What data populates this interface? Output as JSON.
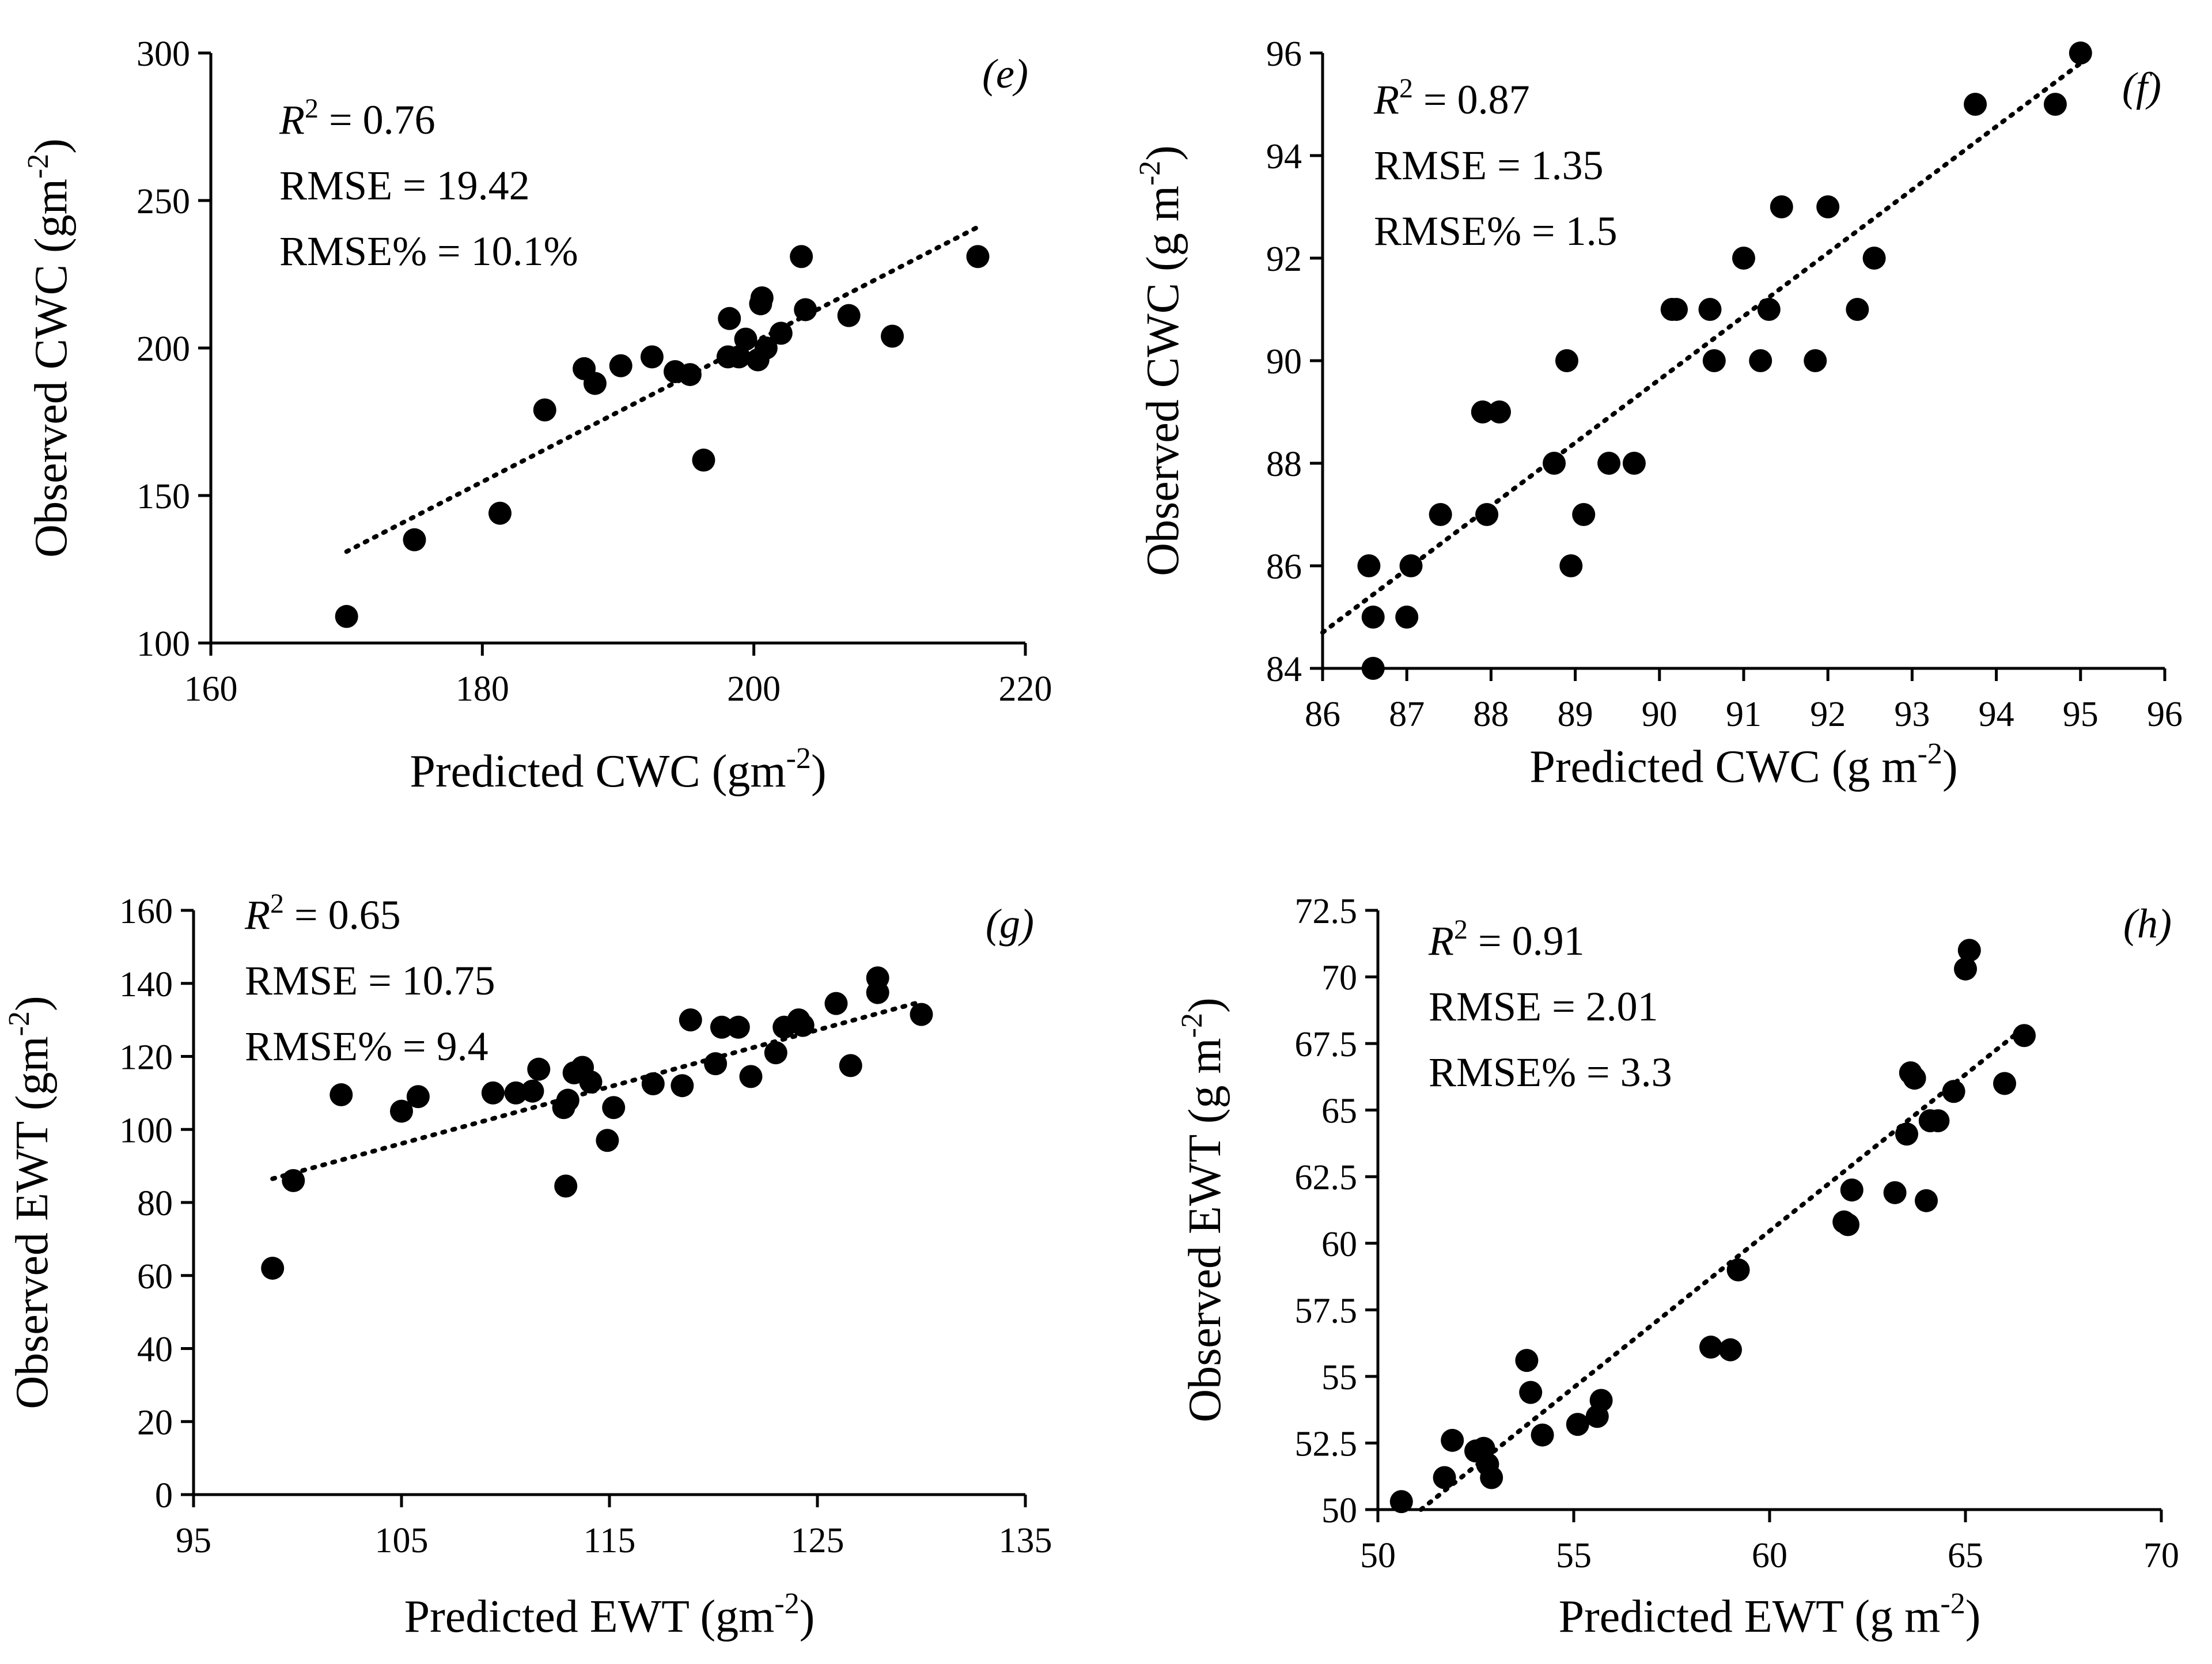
{
  "chart_data": [
    {
      "id": "e",
      "type": "scatter",
      "panel_label": "(e)",
      "xlabel": "Predicted CWC (gm",
      "xlabel_sup": "-2",
      "xlabel_end": ")",
      "ylabel": "Observed CWC (gm",
      "ylabel_sup": "-2",
      "ylabel_end": ")",
      "xlim": [
        160,
        220
      ],
      "ylim": [
        100,
        300
      ],
      "xticks": [
        160,
        180,
        200,
        220
      ],
      "yticks": [
        100,
        150,
        200,
        250,
        300
      ],
      "stats": {
        "r2_label": "R",
        "r2_sup": "2",
        "r2_value": " = 0.76",
        "rmse": "RMSE = 19.42",
        "rmse_pct": "RMSE% = 10.1%"
      },
      "trendline": {
        "x": [
          170,
          216.5
        ],
        "y": [
          131,
          241
        ]
      },
      "points": [
        [
          170,
          109
        ],
        [
          175,
          135
        ],
        [
          181.3,
          144
        ],
        [
          184.6,
          179
        ],
        [
          187.5,
          193
        ],
        [
          188.3,
          188
        ],
        [
          190.2,
          194
        ],
        [
          192.5,
          197
        ],
        [
          194.2,
          192
        ],
        [
          195.3,
          191
        ],
        [
          196.3,
          162
        ],
        [
          198.1,
          197
        ],
        [
          198.2,
          210
        ],
        [
          198.9,
          197
        ],
        [
          199.4,
          203
        ],
        [
          200.3,
          196
        ],
        [
          200.6,
          217
        ],
        [
          200.5,
          215
        ],
        [
          200.9,
          200
        ],
        [
          202,
          205
        ],
        [
          203.5,
          231
        ],
        [
          203.8,
          213
        ],
        [
          207,
          211
        ],
        [
          210.2,
          204
        ],
        [
          216.5,
          231
        ]
      ]
    },
    {
      "id": "f",
      "type": "scatter",
      "panel_label": "(f)",
      "xlabel": "Predicted CWC (g m",
      "xlabel_sup": "-2",
      "xlabel_end": ")",
      "ylabel": "Observed CWC (g m",
      "ylabel_sup": "-2",
      "ylabel_end": ")",
      "xlim": [
        86,
        96
      ],
      "ylim": [
        84,
        96
      ],
      "xticks": [
        86,
        87,
        88,
        89,
        90,
        91,
        92,
        93,
        94,
        95,
        96
      ],
      "yticks": [
        84,
        86,
        88,
        90,
        92,
        94,
        96
      ],
      "stats": {
        "r2_label": "R",
        "r2_sup": "2",
        "r2_value": " = 0.87",
        "rmse": "RMSE = 1.35",
        "rmse_pct": "RMSE% = 1.5"
      },
      "trendline": {
        "x": [
          86,
          95
        ],
        "y": [
          84.7,
          95.8
        ]
      },
      "points": [
        [
          86.55,
          86
        ],
        [
          86.6,
          85
        ],
        [
          86.6,
          84
        ],
        [
          87,
          85
        ],
        [
          87.05,
          86
        ],
        [
          87.4,
          87
        ],
        [
          87.9,
          89
        ],
        [
          87.95,
          87
        ],
        [
          88.1,
          89
        ],
        [
          88.75,
          88
        ],
        [
          88.9,
          90
        ],
        [
          88.95,
          86
        ],
        [
          89.1,
          87
        ],
        [
          89.4,
          88
        ],
        [
          89.7,
          88
        ],
        [
          90.15,
          91
        ],
        [
          90.2,
          91
        ],
        [
          90.6,
          91
        ],
        [
          90.65,
          90
        ],
        [
          91,
          92
        ],
        [
          91.2,
          90
        ],
        [
          91.3,
          91
        ],
        [
          91.45,
          93
        ],
        [
          91.85,
          90
        ],
        [
          92,
          93
        ],
        [
          92.35,
          91
        ],
        [
          92.55,
          92
        ],
        [
          93.75,
          95
        ],
        [
          94.7,
          95
        ],
        [
          95,
          96
        ]
      ]
    },
    {
      "id": "g",
      "type": "scatter",
      "panel_label": "(g)",
      "xlabel": "Predicted EWT (gm",
      "xlabel_sup": "-2",
      "xlabel_end": ")",
      "ylabel": "Observed EWT (gm",
      "ylabel_sup": "-2",
      "ylabel_end": ")",
      "xlim": [
        95,
        135
      ],
      "ylim": [
        0,
        160
      ],
      "xticks": [
        95,
        105,
        115,
        125,
        135
      ],
      "yticks": [
        0,
        20,
        40,
        60,
        80,
        100,
        120,
        140,
        160
      ],
      "stats": {
        "r2_label": "R",
        "r2_sup": "2",
        "r2_value": " = 0.65",
        "rmse": "RMSE = 10.75",
        "rmse_pct": "RMSE% = 9.4"
      },
      "trendline": {
        "x": [
          98.8,
          130
        ],
        "y": [
          86.5,
          135
        ]
      },
      "points": [
        [
          98.8,
          62
        ],
        [
          99.8,
          86
        ],
        [
          102.1,
          109.5
        ],
        [
          105,
          105
        ],
        [
          105.8,
          109
        ],
        [
          109.4,
          110
        ],
        [
          110.5,
          110
        ],
        [
          111.3,
          110.5
        ],
        [
          111.6,
          116.5
        ],
        [
          112.8,
          106
        ],
        [
          112.9,
          84.5
        ],
        [
          113,
          108
        ],
        [
          113.3,
          115.5
        ],
        [
          113.7,
          117
        ],
        [
          114.1,
          113
        ],
        [
          114.9,
          97
        ],
        [
          115.2,
          106
        ],
        [
          117.1,
          112.5
        ],
        [
          118.5,
          112
        ],
        [
          118.9,
          130
        ],
        [
          120.1,
          118
        ],
        [
          120.4,
          128
        ],
        [
          121.2,
          128
        ],
        [
          121.8,
          114.5
        ],
        [
          123,
          121
        ],
        [
          123.4,
          128
        ],
        [
          124.1,
          130
        ],
        [
          124.3,
          128.5
        ],
        [
          125.9,
          134.5
        ],
        [
          126.6,
          117.5
        ],
        [
          127.9,
          141.5
        ],
        [
          127.9,
          137.5
        ],
        [
          130,
          131.5
        ]
      ]
    },
    {
      "id": "h",
      "type": "scatter",
      "panel_label": "(h)",
      "xlabel": "Predicted EWT (g m",
      "xlabel_sup": "-2",
      "xlabel_end": ")",
      "ylabel": "Observed EWT (g m",
      "ylabel_sup": "-2",
      "ylabel_end": ")",
      "xlim": [
        50,
        70
      ],
      "ylim": [
        50,
        72.5
      ],
      "xticks": [
        50,
        55,
        60,
        65,
        70
      ],
      "yticks": [
        50,
        52.5,
        55,
        57.5,
        60,
        62.5,
        65,
        67.5,
        70,
        72.5
      ],
      "stats": {
        "r2_label": "R",
        "r2_sup": "2",
        "r2_value": " = 0.91",
        "rmse": "RMSE = 2.01",
        "rmse_pct": "RMSE% = 3.3"
      },
      "trendline": {
        "x": [
          51.1,
          66.5
        ],
        "y": [
          50,
          68.1
        ]
      },
      "points": [
        [
          50.6,
          50.3
        ],
        [
          51.7,
          51.2
        ],
        [
          51.9,
          52.6
        ],
        [
          52.5,
          52.2
        ],
        [
          52.7,
          52.3
        ],
        [
          52.8,
          51.7
        ],
        [
          52.9,
          51.2
        ],
        [
          53.8,
          55.6
        ],
        [
          53.9,
          54.4
        ],
        [
          54.2,
          52.8
        ],
        [
          55.1,
          53.2
        ],
        [
          55.6,
          53.5
        ],
        [
          55.7,
          54.1
        ],
        [
          58.5,
          56.1
        ],
        [
          59,
          56
        ],
        [
          59.2,
          59
        ],
        [
          61.9,
          60.8
        ],
        [
          62,
          60.7
        ],
        [
          62.1,
          62
        ],
        [
          63.2,
          61.9
        ],
        [
          63.5,
          64.1
        ],
        [
          63.6,
          66.4
        ],
        [
          63.7,
          66.2
        ],
        [
          64,
          61.6
        ],
        [
          64.1,
          64.6
        ],
        [
          64.3,
          64.6
        ],
        [
          64.7,
          65.7
        ],
        [
          65,
          70.3
        ],
        [
          65.1,
          71
        ],
        [
          66,
          66
        ],
        [
          66.5,
          67.8
        ]
      ]
    }
  ]
}
